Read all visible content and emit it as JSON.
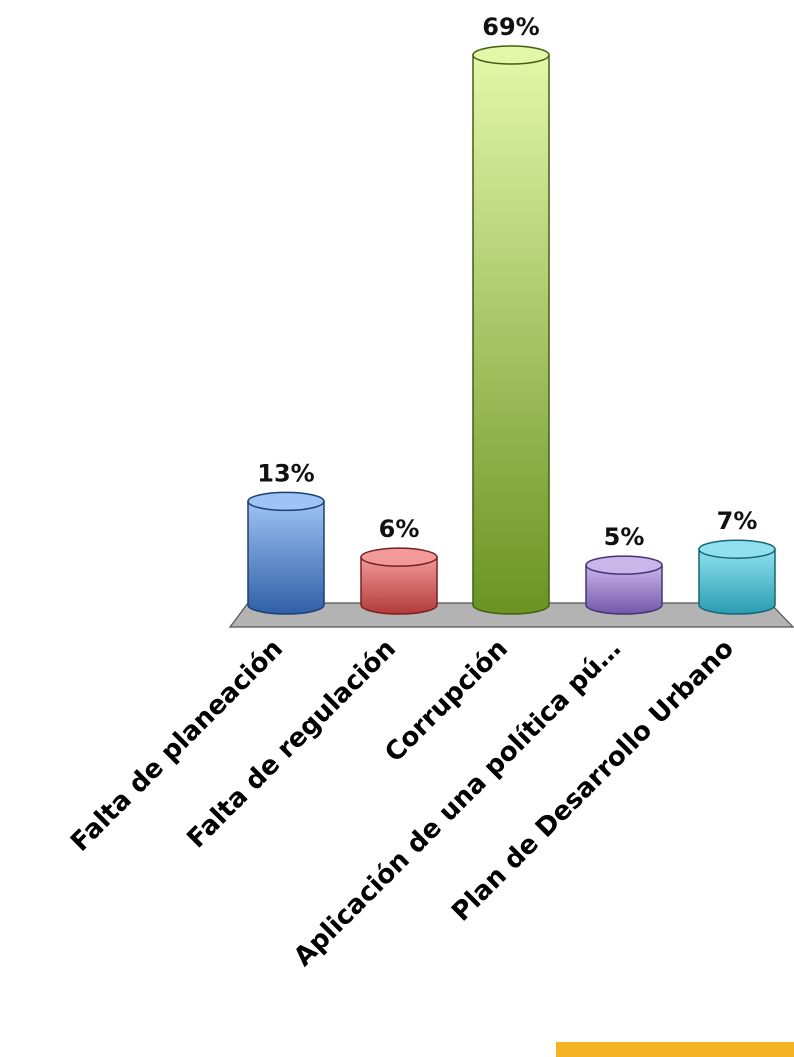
{
  "chart_data": {
    "type": "bar",
    "categories": [
      "Falta de planeación",
      "Falta de regulación",
      "Corrupción",
      "Aplicación de una política pú…",
      "Plan de Desarrollo Urbano"
    ],
    "values": [
      13,
      6,
      69,
      5,
      7
    ],
    "value_labels": [
      "13%",
      "6%",
      "69%",
      "5%",
      "7%"
    ],
    "ylim": [
      0,
      69
    ],
    "grid": false,
    "legend": "none",
    "colors": [
      {
        "top": "#9ec3f4",
        "bottom": "#2f5fa6",
        "stroke": "#1e3f73"
      },
      {
        "top": "#f29a9a",
        "bottom": "#b23a3a",
        "stroke": "#7a1f1f"
      },
      {
        "top": "#e3f7a8",
        "bottom": "#6a9323",
        "stroke": "#425e12"
      },
      {
        "top": "#cbb6ea",
        "bottom": "#7257a8",
        "stroke": "#473276"
      },
      {
        "top": "#8fe1ef",
        "bottom": "#2a9db2",
        "stroke": "#176574"
      }
    ],
    "floor_color": "#b3b3b3",
    "accent_bar_color": "#f5b324"
  }
}
